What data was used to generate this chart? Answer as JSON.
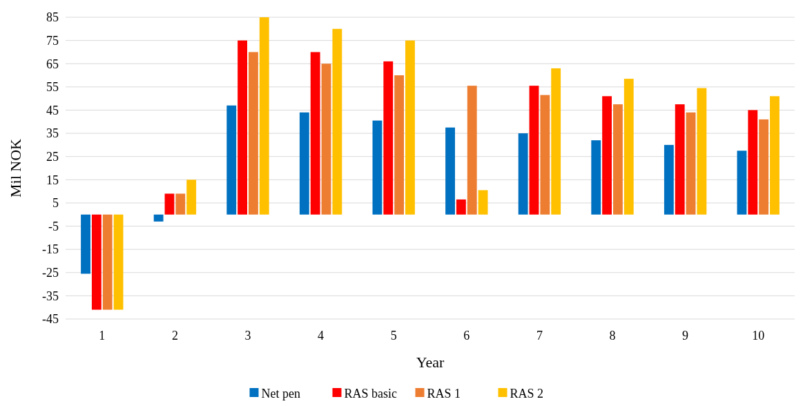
{
  "chart_data": {
    "type": "bar",
    "xlabel": "Year",
    "ylabel": "Mil NOK",
    "categories": [
      "1",
      "2",
      "3",
      "4",
      "5",
      "6",
      "7",
      "8",
      "9",
      "10"
    ],
    "series": [
      {
        "name": "Net pen",
        "color": "#0070c0",
        "values": [
          -25.5,
          -3,
          47,
          44,
          40.5,
          37.5,
          35,
          32,
          30,
          27.5
        ]
      },
      {
        "name": "RAS basic",
        "color": "#ff0000",
        "values": [
          -41,
          9,
          75,
          70,
          66,
          6.5,
          55.5,
          51,
          47.5,
          45
        ]
      },
      {
        "name": "RAS 1",
        "color": "#ed7d31",
        "values": [
          -41,
          9,
          70,
          65,
          60,
          55.5,
          51.5,
          47.5,
          44,
          41
        ]
      },
      {
        "name": "RAS 2",
        "color": "#ffc000",
        "values": [
          -41,
          15,
          85,
          80,
          75,
          10.5,
          63,
          58.5,
          54.5,
          51
        ]
      }
    ],
    "ylim": [
      -45,
      85
    ],
    "yticks": [
      -45,
      -35,
      -25,
      -15,
      -5,
      5,
      15,
      25,
      35,
      45,
      55,
      65,
      75,
      85
    ],
    "grid": "y",
    "legend": "bottom"
  }
}
